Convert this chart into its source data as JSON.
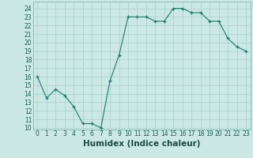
{
  "x": [
    0,
    1,
    2,
    3,
    4,
    5,
    6,
    7,
    8,
    9,
    10,
    11,
    12,
    13,
    14,
    15,
    16,
    17,
    18,
    19,
    20,
    21,
    22,
    23
  ],
  "y": [
    16,
    13.5,
    14.5,
    13.8,
    12.5,
    10.5,
    10.5,
    10,
    15.5,
    18.5,
    23,
    23,
    23,
    22.5,
    22.5,
    24,
    24,
    23.5,
    23.5,
    22.5,
    22.5,
    20.5,
    19.5,
    19
  ],
  "line_color": "#1a7a6e",
  "marker_color": "#1a7a6e",
  "bg_color": "#cce8e5",
  "grid_color": "#a8d0cc",
  "xlabel": "Humidex (Indice chaleur)",
  "xlim": [
    -0.5,
    23.5
  ],
  "ylim": [
    9.8,
    24.8
  ],
  "yticks": [
    10,
    11,
    12,
    13,
    14,
    15,
    16,
    17,
    18,
    19,
    20,
    21,
    22,
    23,
    24
  ],
  "xticks": [
    0,
    1,
    2,
    3,
    4,
    5,
    6,
    7,
    8,
    9,
    10,
    11,
    12,
    13,
    14,
    15,
    16,
    17,
    18,
    19,
    20,
    21,
    22,
    23
  ],
  "tick_fontsize": 5.5,
  "label_fontsize": 7.5
}
